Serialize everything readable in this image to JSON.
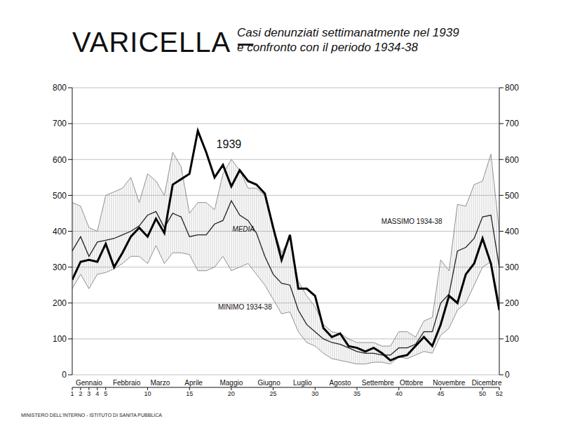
{
  "chart_data": {
    "type": "line",
    "title": "VARICELLA –",
    "subtitle": [
      "Casi denunziati settimanatmente nel 1939",
      "e confronto con il periodo 1934-38"
    ],
    "source": "MINISTERO DELL'INTERNO - ISTITUTO DI SANITA PUBBLICA",
    "x": [
      1,
      2,
      3,
      4,
      5,
      6,
      7,
      8,
      9,
      10,
      11,
      12,
      13,
      14,
      15,
      16,
      17,
      18,
      19,
      20,
      21,
      22,
      23,
      24,
      25,
      26,
      27,
      28,
      29,
      30,
      31,
      32,
      33,
      34,
      35,
      36,
      37,
      38,
      39,
      40,
      41,
      42,
      43,
      44,
      45,
      46,
      47,
      48,
      49,
      50,
      51,
      52
    ],
    "xlim": [
      1,
      52
    ],
    "xticks": [
      1,
      2,
      3,
      4,
      5,
      10,
      15,
      20,
      25,
      30,
      35,
      40,
      45,
      50,
      52
    ],
    "month_ticks": [
      {
        "value": 3,
        "label": "Gennaio"
      },
      {
        "value": 7.5,
        "label": "Febbraio"
      },
      {
        "value": 11.5,
        "label": "Marzo"
      },
      {
        "value": 15.5,
        "label": "Aprile"
      },
      {
        "value": 20,
        "label": "Maggio"
      },
      {
        "value": 24.5,
        "label": "Giugno"
      },
      {
        "value": 28.5,
        "label": "Luglio"
      },
      {
        "value": 33,
        "label": "Agosto"
      },
      {
        "value": 37.5,
        "label": "Settembre"
      },
      {
        "value": 41.5,
        "label": "Ottobre"
      },
      {
        "value": 46,
        "label": "Novembre"
      },
      {
        "value": 50.5,
        "label": "Dicembre"
      }
    ],
    "ylim": [
      0,
      800
    ],
    "yticks": [
      0,
      100,
      200,
      300,
      400,
      500,
      600,
      700,
      800
    ],
    "y2lim": [
      0,
      800
    ],
    "y2ticks": [
      0,
      100,
      200,
      300,
      400,
      500,
      600,
      700,
      800
    ],
    "grid": true,
    "series": [
      {
        "name": "MINIMO 1934-38",
        "color": "#777777",
        "line_style": "solid",
        "label_at": [
          18,
          188
        ],
        "values": [
          240,
          280,
          240,
          280,
          285,
          295,
          310,
          330,
          330,
          310,
          360,
          310,
          340,
          340,
          335,
          290,
          290,
          300,
          330,
          290,
          300,
          310,
          280,
          250,
          210,
          170,
          175,
          120,
          90,
          80,
          60,
          45,
          40,
          35,
          30,
          30,
          35,
          35,
          30,
          50,
          45,
          55,
          65,
          60,
          110,
          130,
          180,
          200,
          250,
          300,
          315,
          200
        ]
      },
      {
        "name": "MASSIMO 1934-38",
        "color": "#777777",
        "line_style": "solid",
        "label_at": [
          37.5,
          428
        ],
        "values": [
          480,
          470,
          410,
          400,
          500,
          510,
          520,
          550,
          480,
          560,
          540,
          500,
          620,
          580,
          450,
          480,
          480,
          460,
          560,
          600,
          570,
          520,
          520,
          500,
          410,
          340,
          380,
          260,
          220,
          190,
          140,
          120,
          115,
          100,
          90,
          90,
          90,
          80,
          80,
          120,
          120,
          105,
          150,
          160,
          320,
          290,
          475,
          470,
          530,
          540,
          615,
          400
        ]
      },
      {
        "name": "MEDIA",
        "color": "#222222",
        "line_style": "solid",
        "label_at": [
          19.7,
          405
        ],
        "values": [
          345,
          385,
          330,
          370,
          375,
          380,
          390,
          400,
          415,
          445,
          455,
          410,
          450,
          440,
          385,
          390,
          390,
          420,
          430,
          485,
          445,
          430,
          395,
          330,
          280,
          255,
          250,
          180,
          140,
          120,
          100,
          90,
          85,
          75,
          65,
          60,
          60,
          55,
          55,
          75,
          75,
          85,
          120,
          120,
          200,
          225,
          345,
          355,
          380,
          440,
          445,
          300
        ]
      },
      {
        "name": "1939",
        "color": "#000000",
        "line_style": "solid",
        "label_at": [
          17.8,
          642
        ],
        "values": [
          265,
          315,
          320,
          315,
          365,
          300,
          340,
          385,
          410,
          385,
          435,
          395,
          530,
          545,
          560,
          680,
          620,
          550,
          585,
          525,
          570,
          540,
          530,
          505,
          410,
          320,
          390,
          240,
          240,
          220,
          130,
          105,
          115,
          80,
          75,
          65,
          75,
          60,
          40,
          50,
          55,
          80,
          105,
          80,
          140,
          220,
          200,
          280,
          310,
          380,
          310,
          180
        ]
      }
    ]
  }
}
